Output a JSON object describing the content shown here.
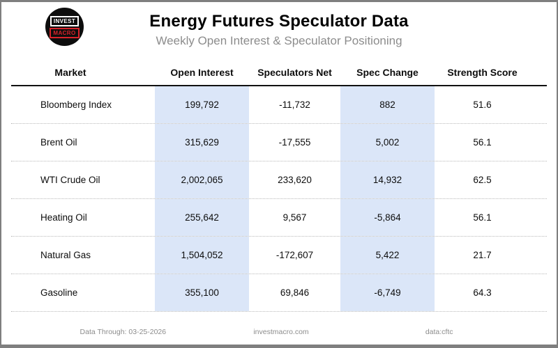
{
  "header": {
    "logo_line1": "INVEST",
    "logo_line2": "MACRO",
    "title": "Energy Futures Speculator Data",
    "subtitle": "Weekly Open Interest & Speculator Positioning"
  },
  "table": {
    "columns": [
      "Market",
      "Open Interest",
      "Speculators Net",
      "Spec Change",
      "Strength Score"
    ],
    "rows": [
      {
        "market": "Bloomberg Index",
        "open_interest": "199,792",
        "spec_net": "-11,732",
        "spec_change": "882",
        "strength": "51.6"
      },
      {
        "market": "Brent Oil",
        "open_interest": "315,629",
        "spec_net": "-17,555",
        "spec_change": "5,002",
        "strength": "56.1"
      },
      {
        "market": "WTI Crude Oil",
        "open_interest": "2,002,065",
        "spec_net": "233,620",
        "spec_change": "14,932",
        "strength": "62.5"
      },
      {
        "market": "Heating Oil",
        "open_interest": "255,642",
        "spec_net": "9,567",
        "spec_change": "-5,864",
        "strength": "56.1"
      },
      {
        "market": "Natural Gas",
        "open_interest": "1,504,052",
        "spec_net": "-172,607",
        "spec_change": "5,422",
        "strength": "21.7"
      },
      {
        "market": "Gasoline",
        "open_interest": "355,100",
        "spec_net": "69,846",
        "spec_change": "-6,749",
        "strength": "64.3"
      }
    ]
  },
  "footer": {
    "data_through": "Data Through: 03-25-2026",
    "website": "investmacro.com",
    "source": "data:cftc"
  },
  "colors": {
    "highlight_blue": "#dbe6f8",
    "logo_red": "#d8232a",
    "frame_gray": "#7f7f7f",
    "muted_text": "#8c8c8c"
  },
  "chart_data": {
    "type": "table",
    "title": "Energy Futures Speculator Data",
    "subtitle": "Weekly Open Interest & Speculator Positioning",
    "columns": [
      "Market",
      "Open Interest",
      "Speculators Net",
      "Spec Change",
      "Strength Score"
    ],
    "rows": [
      [
        "Bloomberg Index",
        199792,
        -11732,
        882,
        51.6
      ],
      [
        "Brent Oil",
        315629,
        -17555,
        5002,
        56.1
      ],
      [
        "WTI Crude Oil",
        2002065,
        233620,
        14932,
        62.5
      ],
      [
        "Heating Oil",
        255642,
        9567,
        -5864,
        56.1
      ],
      [
        "Natural Gas",
        1504052,
        -172607,
        5422,
        21.7
      ],
      [
        "Gasoline",
        355100,
        69846,
        -6749,
        64.3
      ]
    ],
    "highlighted_columns": [
      "Open Interest",
      "Spec Change"
    ],
    "data_through": "03-25-2026",
    "source": "cftc"
  }
}
